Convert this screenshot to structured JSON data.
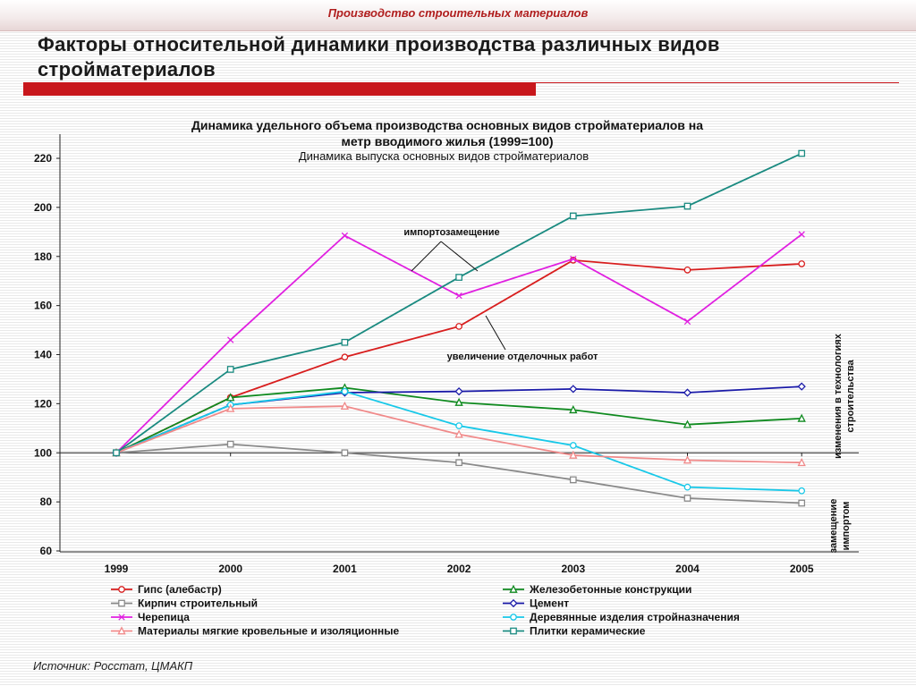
{
  "header": {
    "title": "Производство строительных материалов"
  },
  "page": {
    "title": "Факторы относительной динамики производства различных видов стройматериалов",
    "source": "Источник: Росстат, ЦМАКП"
  },
  "chart_data": {
    "type": "line",
    "title": "Динамика удельного объема производства основных видов стройматериалов на метр вводимого жилья (1999=100)",
    "subtitle": "Динамика выпуска основных видов стройматериалов",
    "x": [
      "1999",
      "2000",
      "2001",
      "2002",
      "2003",
      "2004",
      "2005"
    ],
    "ylim": [
      60,
      230
    ],
    "yticks": [
      60,
      80,
      100,
      120,
      140,
      160,
      180,
      200,
      220
    ],
    "grid": false,
    "legend_position": "bottom",
    "series": [
      {
        "name": "Гипс (алебастр)",
        "color": "#d81e1e",
        "marker": "circle",
        "values": [
          100,
          122.5,
          139,
          151.5,
          178.5,
          174.5,
          177
        ]
      },
      {
        "name": "Железобетонные конструкции",
        "color": "#0f8a1f",
        "marker": "triangle",
        "values": [
          100,
          122.5,
          126.5,
          120.5,
          117.5,
          111.5,
          114
        ]
      },
      {
        "name": "Кирпич строительный",
        "color": "#8a8a8a",
        "marker": "square",
        "values": [
          100,
          103.5,
          100,
          96,
          89,
          81.5,
          79.5
        ]
      },
      {
        "name": "Цемент",
        "color": "#1a1aa8",
        "marker": "diamond",
        "values": [
          100,
          119.5,
          124.5,
          125,
          126,
          124.5,
          127
        ]
      },
      {
        "name": "Черепица",
        "color": "#e020e0",
        "marker": "x",
        "values": [
          100,
          146,
          188.5,
          164,
          179,
          153.5,
          189
        ]
      },
      {
        "name": "Деревянные изделия стройназначения",
        "color": "#18c8e8",
        "marker": "circle",
        "values": [
          100,
          119.5,
          125,
          111,
          103,
          86,
          84.5
        ]
      },
      {
        "name": "Материалы мягкие кровельные и изоляционные",
        "color": "#f08a8a",
        "marker": "triangle",
        "values": [
          100,
          118,
          119,
          107.5,
          99,
          97,
          96
        ]
      },
      {
        "name": "Плитки керамические",
        "color": "#1a8a80",
        "marker": "square",
        "values": [
          100,
          134,
          145,
          171.5,
          196.5,
          200.5,
          222
        ]
      }
    ],
    "annotations": {
      "import_substitution": "импортозамещение",
      "finishing_works": "увеличение отделочных работ",
      "tech_change": "изменения в технологиях строительства",
      "import_replacement": "замещение импортом"
    }
  }
}
